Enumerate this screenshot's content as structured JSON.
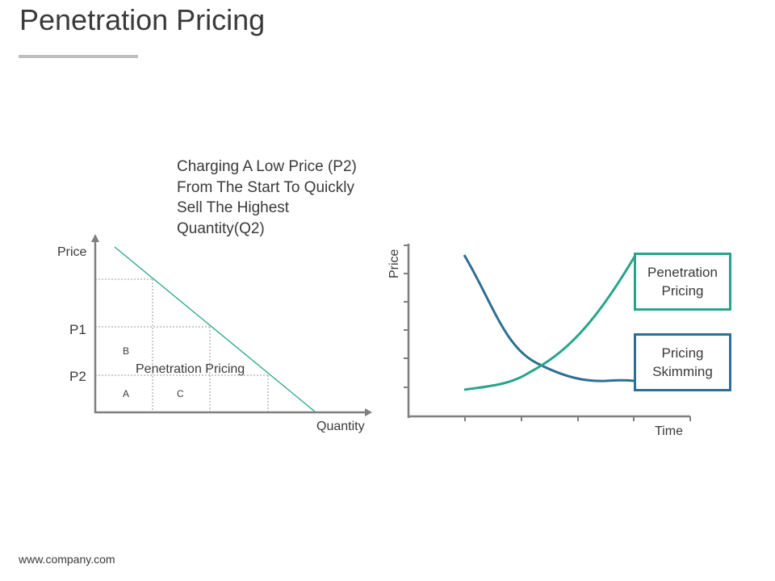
{
  "slide": {
    "title": "Penetration Pricing",
    "footer": "www.company.com"
  },
  "left_chart": {
    "caption": "Charging A Low Price (P2) From The Start To Quickly Sell The Highest Quantity(Q2)",
    "y_axis_label": "Price",
    "x_axis_label": "Quantity",
    "price_labels": {
      "p1": "P1",
      "p2": "P2"
    },
    "area_labels": {
      "a": "A",
      "b": "B",
      "c": "C"
    },
    "region_label": "Penetration Pricing"
  },
  "right_chart": {
    "y_axis_label": "Price",
    "x_axis_label": "Time",
    "legend": {
      "penetration": "Penetration Pricing",
      "skimming": "Pricing Skimming"
    },
    "colors": {
      "penetration": "#27a58a",
      "skimming": "#2e6f92"
    }
  }
}
